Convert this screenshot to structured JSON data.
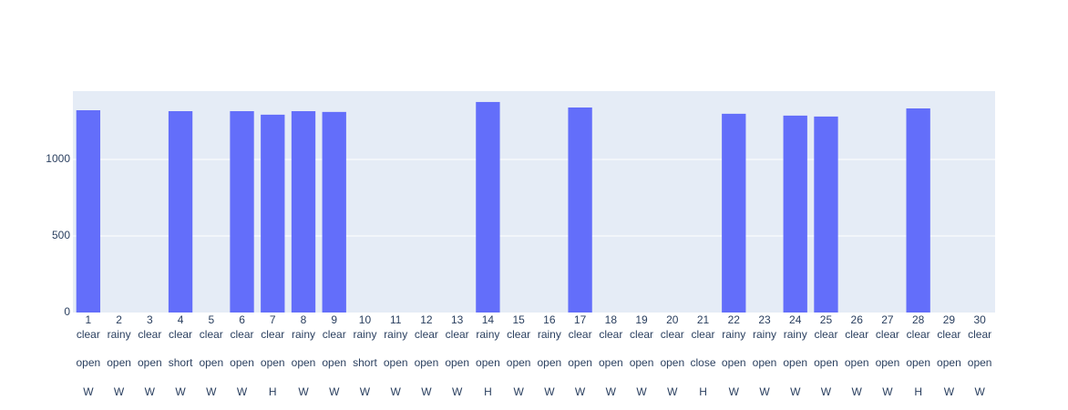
{
  "chart_data": {
    "type": "bar",
    "categories": [
      [
        "1",
        "clear",
        "open",
        "W"
      ],
      [
        "2",
        "rainy",
        "open",
        "W"
      ],
      [
        "3",
        "clear",
        "open",
        "W"
      ],
      [
        "4",
        "clear",
        "short",
        "W"
      ],
      [
        "5",
        "clear",
        "open",
        "W"
      ],
      [
        "6",
        "clear",
        "open",
        "W"
      ],
      [
        "7",
        "clear",
        "open",
        "H"
      ],
      [
        "8",
        "rainy",
        "open",
        "W"
      ],
      [
        "9",
        "clear",
        "open",
        "W"
      ],
      [
        "10",
        "rainy",
        "short",
        "W"
      ],
      [
        "11",
        "rainy",
        "open",
        "W"
      ],
      [
        "12",
        "clear",
        "open",
        "W"
      ],
      [
        "13",
        "clear",
        "open",
        "W"
      ],
      [
        "14",
        "rainy",
        "open",
        "H"
      ],
      [
        "15",
        "clear",
        "open",
        "W"
      ],
      [
        "16",
        "rainy",
        "open",
        "W"
      ],
      [
        "17",
        "clear",
        "open",
        "W"
      ],
      [
        "18",
        "clear",
        "open",
        "W"
      ],
      [
        "19",
        "clear",
        "open",
        "W"
      ],
      [
        "20",
        "clear",
        "open",
        "W"
      ],
      [
        "21",
        "clear",
        "close",
        "H"
      ],
      [
        "22",
        "rainy",
        "open",
        "W"
      ],
      [
        "23",
        "rainy",
        "open",
        "W"
      ],
      [
        "24",
        "rainy",
        "open",
        "W"
      ],
      [
        "25",
        "clear",
        "open",
        "W"
      ],
      [
        "26",
        "clear",
        "open",
        "W"
      ],
      [
        "27",
        "clear",
        "open",
        "W"
      ],
      [
        "28",
        "clear",
        "open",
        "H"
      ],
      [
        "29",
        "clear",
        "open",
        "W"
      ],
      [
        "30",
        "clear",
        "open",
        "W"
      ]
    ],
    "values": [
      1321,
      0,
      0,
      1315,
      0,
      1315,
      1292,
      1315,
      1310,
      0,
      0,
      0,
      0,
      1375,
      0,
      0,
      1339,
      0,
      0,
      0,
      0,
      1298,
      0,
      1286,
      1280,
      0,
      0,
      1333,
      0,
      0
    ],
    "color": "#636efa",
    "ylim": [
      0,
      1446
    ],
    "yticks": [
      0,
      500,
      1000
    ],
    "grid": true
  }
}
